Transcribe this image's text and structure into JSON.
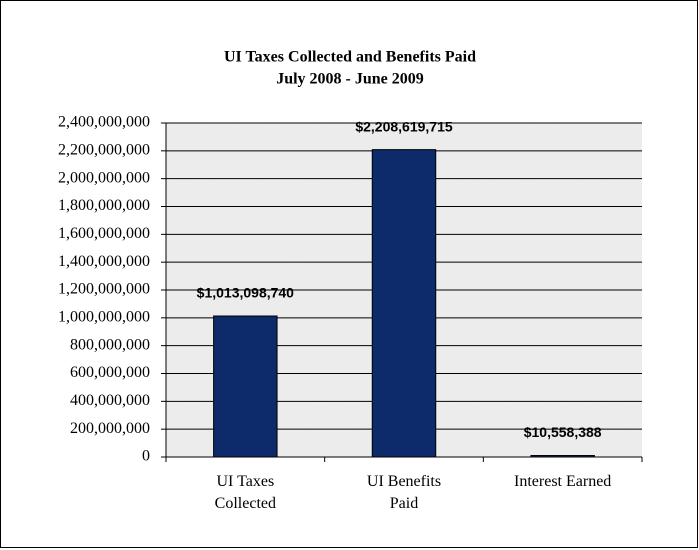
{
  "chart_data": {
    "type": "bar",
    "title": "UI Taxes Collected and Benefits Paid",
    "subtitle": "July 2008 - June 2009",
    "categories": [
      "UI Taxes Collected",
      "UI Benefits Paid",
      "Interest Earned"
    ],
    "values": [
      1013098740,
      2208619715,
      10558388
    ],
    "value_labels": [
      "$1,013,098,740",
      "$2,208,619,715",
      "$10,558,388"
    ],
    "color": "#0d2a6b",
    "ylim": [
      0,
      2400000000
    ],
    "yticks": [
      0,
      {
        "value": 200000000,
        "label": "200,000,000"
      },
      {
        "value": 400000000,
        "label": "400,000,000"
      },
      {
        "value": 600000000,
        "label": "600,000,000"
      },
      {
        "value": 800000000,
        "label": "800,000,000"
      },
      {
        "value": 1000000000,
        "label": "1,000,000,000"
      },
      {
        "value": 1200000000,
        "label": "1,200,000,000"
      },
      {
        "value": 1400000000,
        "label": "1,400,000,000"
      },
      {
        "value": 1600000000,
        "label": "1,600,000,000"
      },
      {
        "value": 1800000000,
        "label": "1,800,000,000"
      },
      {
        "value": 2000000000,
        "label": "2,000,000,000"
      },
      {
        "value": 2200000000,
        "label": "2,200,000,000"
      },
      {
        "value": 2400000000,
        "label": "2,400,000,000"
      }
    ],
    "grid": true
  }
}
